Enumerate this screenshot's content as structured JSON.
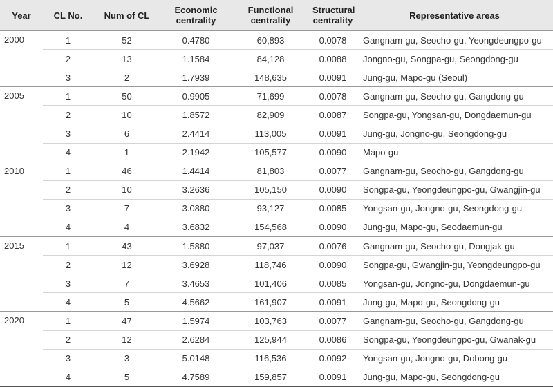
{
  "table": {
    "headers": [
      "Year",
      "CL No.",
      "Num of CL",
      "Economic centrality",
      "Functional centrality",
      "Structural centrality",
      "Representative areas"
    ],
    "groups": [
      {
        "year": "2000",
        "rows": [
          [
            "1",
            "52",
            "0.4780",
            "60,893",
            "0.0078",
            "Gangnam-gu, Seocho-gu, Yeongdeungpo-gu"
          ],
          [
            "2",
            "13",
            "1.1584",
            "84,128",
            "0.0088",
            "Jongno-gu, Songpa-gu, Seongdong-gu"
          ],
          [
            "3",
            "2",
            "1.7939",
            "148,635",
            "0.0091",
            "Jung-gu, Mapo-gu (Seoul)"
          ]
        ]
      },
      {
        "year": "2005",
        "rows": [
          [
            "1",
            "50",
            "0.9905",
            "71,699",
            "0.0078",
            "Gangnam-gu, Seocho-gu, Gangdong-gu"
          ],
          [
            "2",
            "10",
            "1.8572",
            "82,909",
            "0.0087",
            "Songpa-gu, Yongsan-gu, Dongdaemun-gu"
          ],
          [
            "3",
            "6",
            "2.4414",
            "113,005",
            "0.0091",
            "Jung-gu, Jongno-gu, Seongdong-gu"
          ],
          [
            "4",
            "1",
            "2.1942",
            "105,577",
            "0.0090",
            "Mapo-gu"
          ]
        ]
      },
      {
        "year": "2010",
        "rows": [
          [
            "1",
            "46",
            "1.4414",
            "81,803",
            "0.0077",
            "Gangnam-gu, Seocho-gu, Gangdong-gu"
          ],
          [
            "2",
            "10",
            "3.2636",
            "105,150",
            "0.0090",
            "Songpa-gu, Yeongdeungpo-gu, Gwangjin-gu"
          ],
          [
            "3",
            "7",
            "3.0880",
            "93,127",
            "0.0085",
            "Yongsan-gu, Jongno-gu, Seongdong-gu"
          ],
          [
            "4",
            "4",
            "3.6832",
            "154,568",
            "0.0090",
            "Jung-gu, Mapo-gu, Seodaemun-gu"
          ]
        ]
      },
      {
        "year": "2015",
        "rows": [
          [
            "1",
            "43",
            "1.5880",
            "97,037",
            "0.0076",
            "Gangnam-gu, Seocho-gu, Dongjak-gu"
          ],
          [
            "2",
            "12",
            "3.6928",
            "118,746",
            "0.0090",
            "Songpa-gu, Gwangjin-gu, Yeongdeungpo-gu"
          ],
          [
            "3",
            "7",
            "3.4653",
            "101,406",
            "0.0085",
            "Yongsan-gu, Jongno-gu, Dongdaemun-gu"
          ],
          [
            "4",
            "5",
            "4.5662",
            "161,907",
            "0.0091",
            "Jung-gu, Mapo-gu, Seongdong-gu"
          ]
        ]
      },
      {
        "year": "2020",
        "rows": [
          [
            "1",
            "47",
            "1.5974",
            "103,763",
            "0.0077",
            "Gangnam-gu, Seocho-gu, Gangdong-gu"
          ],
          [
            "2",
            "12",
            "2.6284",
            "125,944",
            "0.0086",
            "Songpa-gu, Yeongdeungpo-gu, Gwanak-gu"
          ],
          [
            "3",
            "3",
            "5.0148",
            "116,536",
            "0.0092",
            "Yongsan-gu, Jongno-gu, Dobong-gu"
          ],
          [
            "4",
            "5",
            "4.7589",
            "159,857",
            "0.0091",
            "Jung-gu, Mapo-gu, Seongdong-gu"
          ]
        ]
      }
    ]
  }
}
